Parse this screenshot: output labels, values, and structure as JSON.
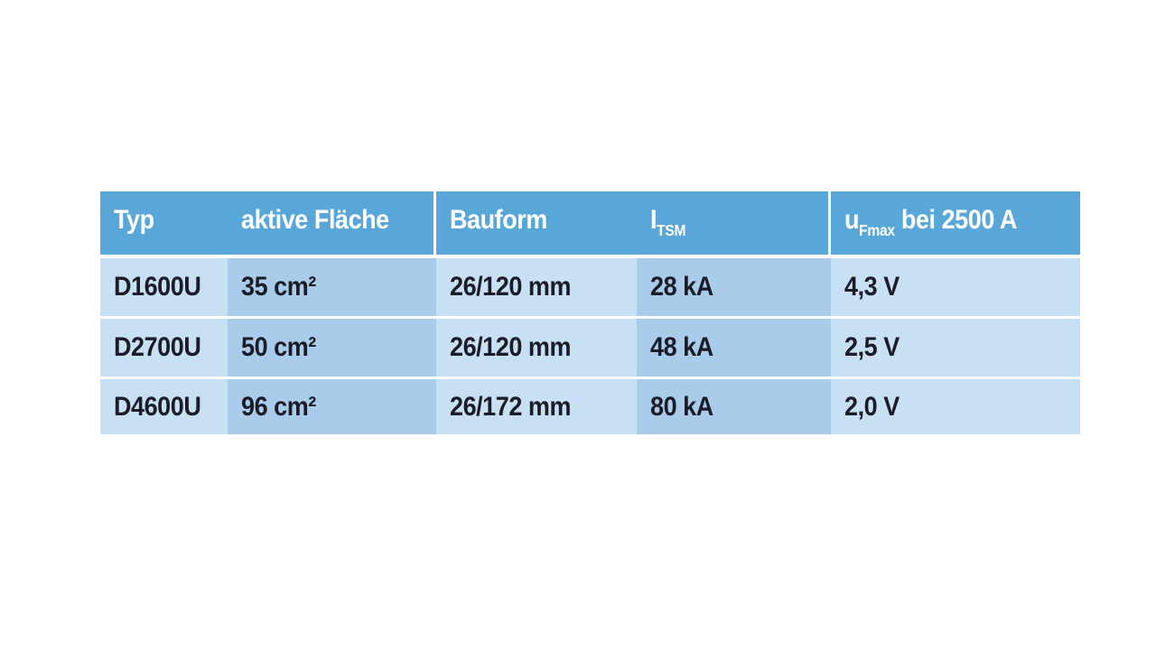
{
  "chart_data": {
    "type": "table",
    "columns": [
      {
        "label": "Typ",
        "sub": "",
        "after": ""
      },
      {
        "label": "aktive Fläche",
        "sub": "",
        "after": ""
      },
      {
        "label": "Bauform",
        "sub": "",
        "after": ""
      },
      {
        "label": "I",
        "sub": "TSM",
        "after": ""
      },
      {
        "label": "u",
        "sub": "Fmax",
        "after": " bei 2500 A"
      }
    ],
    "rows": [
      {
        "cells": [
          "D1600U",
          "35 cm²",
          "26/120 mm",
          "28 kA",
          "4,3 V"
        ]
      },
      {
        "cells": [
          "D2700U",
          "50 cm²",
          "26/120 mm",
          "48 kA",
          "2,5 V"
        ]
      },
      {
        "cells": [
          "D4600U",
          "96 cm²",
          "26/172 mm",
          "80 kA",
          "2,0 V"
        ]
      }
    ]
  },
  "colors": {
    "page_bg": "#ffffff",
    "header_bg": "#58a7d8",
    "header_text": "#ffffff",
    "row_light": "#c8e0f3",
    "row_dark": "#a8cce9",
    "body_text": "#1c1c28"
  }
}
